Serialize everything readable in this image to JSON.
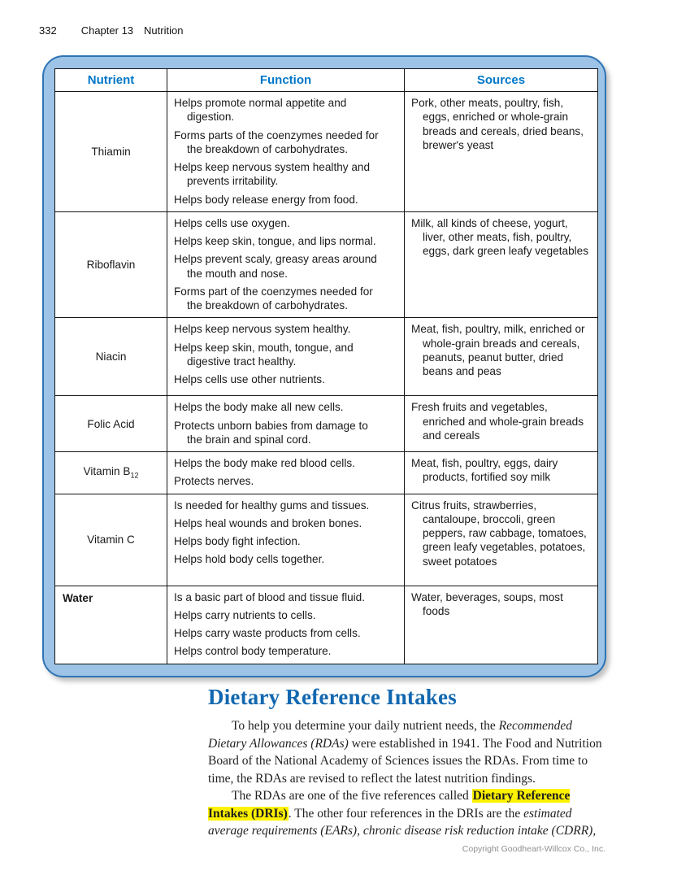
{
  "page": {
    "page_number": "332",
    "chapter_label": "Chapter 13",
    "chapter_title": "Nutrition",
    "copyright": "Copyright Goodheart-Willcox Co., Inc."
  },
  "colors": {
    "frame_fill": "#9dc3e6",
    "frame_border": "#2e74b5",
    "table_header_text": "#0077c8",
    "section_heading_text": "#1268b0",
    "highlight": "#fff200"
  },
  "table": {
    "headers": [
      "Nutrient",
      "Function",
      "Sources"
    ],
    "rows": [
      {
        "nutrient": "Thiamin",
        "functions": [
          "Helps promote normal appetite and digestion.",
          "Forms parts of the coenzymes needed for the breakdown of carbohydrates.",
          "Helps keep nervous system healthy and prevents irritability.",
          "Helps body release energy from food."
        ],
        "sources": "Pork, other meats, poultry, fish, eggs, enriched or whole-grain breads and cereals, dried beans, brewer's yeast"
      },
      {
        "nutrient": "Riboflavin",
        "functions": [
          "Helps cells use oxygen.",
          "Helps keep skin, tongue, and lips normal.",
          "Helps prevent scaly, greasy areas around the mouth and nose.",
          "Forms part of the coenzymes needed for the breakdown of carbohydrates."
        ],
        "sources": "Milk, all kinds of cheese, yogurt, liver, other meats, fish, poultry, eggs, dark green leafy vegetables"
      },
      {
        "nutrient": "Niacin",
        "functions": [
          "Helps keep nervous system healthy.",
          "Helps keep skin, mouth, tongue, and digestive tract healthy.",
          "Helps cells use other nutrients."
        ],
        "sources": "Meat, fish, poultry, milk, enriched or whole-grain breads and cereals, peanuts, peanut butter, dried beans and peas"
      },
      {
        "nutrient": "Folic Acid",
        "functions": [
          "Helps the body make all new cells.",
          "Protects unborn babies from damage to the brain and spinal cord."
        ],
        "sources": "Fresh fruits and vegetables, enriched and whole-grain breads and cereals"
      },
      {
        "nutrient": "Vitamin B",
        "nutrient_subscript": "12",
        "functions": [
          "Helps the body make red blood cells.",
          "Protects nerves."
        ],
        "sources": "Meat, fish, poultry, eggs, dairy products, fortified soy milk"
      },
      {
        "nutrient": "Vitamin C",
        "functions": [
          "Is needed for healthy gums and tissues.",
          "Helps heal wounds and broken bones.",
          "Helps body fight infection.",
          "Helps hold body cells together."
        ],
        "sources": "Citrus fruits, strawberries, cantaloupe, broccoli, green peppers, raw cabbage, tomatoes, green leafy vegetables, potatoes, sweet potatoes"
      },
      {
        "nutrient": "Water",
        "nutrient_bold": true,
        "functions": [
          "Is a basic part of blood and tissue fluid.",
          "Helps carry nutrients to cells.",
          "Helps carry waste products from cells.",
          "Helps control body temperature."
        ],
        "sources": "Water, beverages, soups, most foods"
      }
    ]
  },
  "section": {
    "heading": "Dietary Reference Intakes",
    "paragraphs": [
      {
        "segments": [
          {
            "text": "To help you determine your daily nutrient needs, the ",
            "style": "normal"
          },
          {
            "text": "Recommended Dietary Allowances (RDAs)",
            "style": "italic"
          },
          {
            "text": " were established in 1941. The Food and Nutrition Board of the National Academy of Sciences issues the RDAs. From time to time, the RDAs are revised to reflect the latest nutrition findings.",
            "style": "normal"
          }
        ]
      },
      {
        "segments": [
          {
            "text": "The RDAs are one of the five references called ",
            "style": "normal"
          },
          {
            "text": "Dietary Reference Intakes (DRIs)",
            "style": "bold-highlight"
          },
          {
            "text": ". The other four references in the DRIs are the ",
            "style": "normal"
          },
          {
            "text": "estimated average requirements (EARs), chronic disease risk reduction intake (CDRR),",
            "style": "italic"
          }
        ]
      }
    ]
  }
}
